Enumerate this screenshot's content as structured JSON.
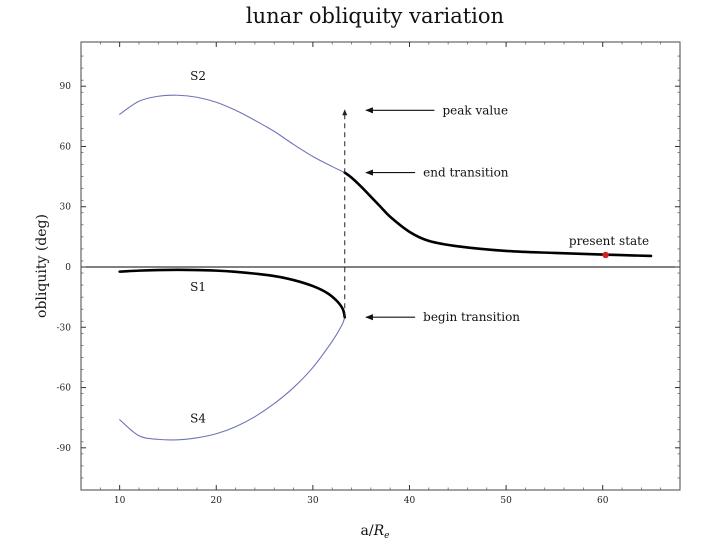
{
  "chart_data": {
    "type": "line",
    "title": "lunar obliquity variation",
    "xlabel": "a/R_e",
    "xlabel_main": "a/",
    "xlabel_italic": "R",
    "xlabel_sub": "e",
    "ylabel": "obliquity (deg)",
    "xlim": [
      6,
      68
    ],
    "ylim": [
      -111,
      112
    ],
    "xticks": [
      10,
      20,
      30,
      40,
      50,
      60
    ],
    "yticks": [
      -90,
      -60,
      -30,
      0,
      30,
      60,
      90
    ],
    "grid": false,
    "colors": {
      "thin_branch": "#6f74b8",
      "thick_path": "#000000",
      "present_marker": "#d42020"
    },
    "series": [
      {
        "name": "S2",
        "style": "thin",
        "x": [
          10,
          12,
          14,
          16,
          18,
          20,
          22,
          24,
          26,
          28,
          30,
          32,
          33.3
        ],
        "y": [
          76,
          82.5,
          85,
          85.5,
          84.5,
          82,
          78,
          73,
          67.5,
          61,
          55,
          50,
          47
        ]
      },
      {
        "name": "S4",
        "style": "thin",
        "x": [
          10,
          12,
          14,
          16,
          18,
          20,
          22,
          24,
          26,
          28,
          30,
          32,
          33.0,
          33.3
        ],
        "y": [
          -76,
          -84,
          -85.8,
          -86,
          -85,
          -83,
          -79.5,
          -74.5,
          -68,
          -60,
          -50,
          -37,
          -29,
          -25
        ]
      },
      {
        "name": "S1",
        "style": "thick",
        "x": [
          10,
          12,
          14,
          16,
          18,
          20,
          22,
          24,
          26,
          28,
          30,
          31.5,
          32.5,
          33.1,
          33.3
        ],
        "y": [
          -2.3,
          -1.8,
          -1.5,
          -1.4,
          -1.5,
          -1.8,
          -2.4,
          -3.3,
          -4.5,
          -6.5,
          -9.5,
          -13,
          -17,
          -21,
          -25
        ]
      },
      {
        "name": "",
        "style": "thick",
        "x": [
          33.3,
          34,
          35,
          36,
          37,
          38,
          40,
          42,
          45,
          50,
          55,
          60,
          65
        ],
        "y": [
          47,
          44.5,
          40,
          35,
          30,
          25,
          17.5,
          13,
          10.3,
          8,
          7,
          6.2,
          5.5
        ]
      }
    ],
    "vertical_dashed_line": {
      "x": 33.3,
      "y_from": -25,
      "y_to": 78
    },
    "present_point": {
      "x": 60.3,
      "y": 6
    },
    "annotations": [
      {
        "text": "peak value",
        "x": 35.5,
        "y": 78,
        "text_x": 43
      },
      {
        "text": "end transition",
        "x": 35.5,
        "y": 47,
        "text_x": 41
      },
      {
        "text": "begin transition",
        "x": 35.5,
        "y": -25,
        "text_x": 41
      },
      {
        "text": "present state",
        "x": 56.5,
        "y": 13
      },
      {
        "text": "S2",
        "x": 17.3,
        "y": 95
      },
      {
        "text": "S1",
        "x": 17.3,
        "y": -10
      },
      {
        "text": "S4",
        "x": 17.3,
        "y": -75.5
      }
    ]
  }
}
